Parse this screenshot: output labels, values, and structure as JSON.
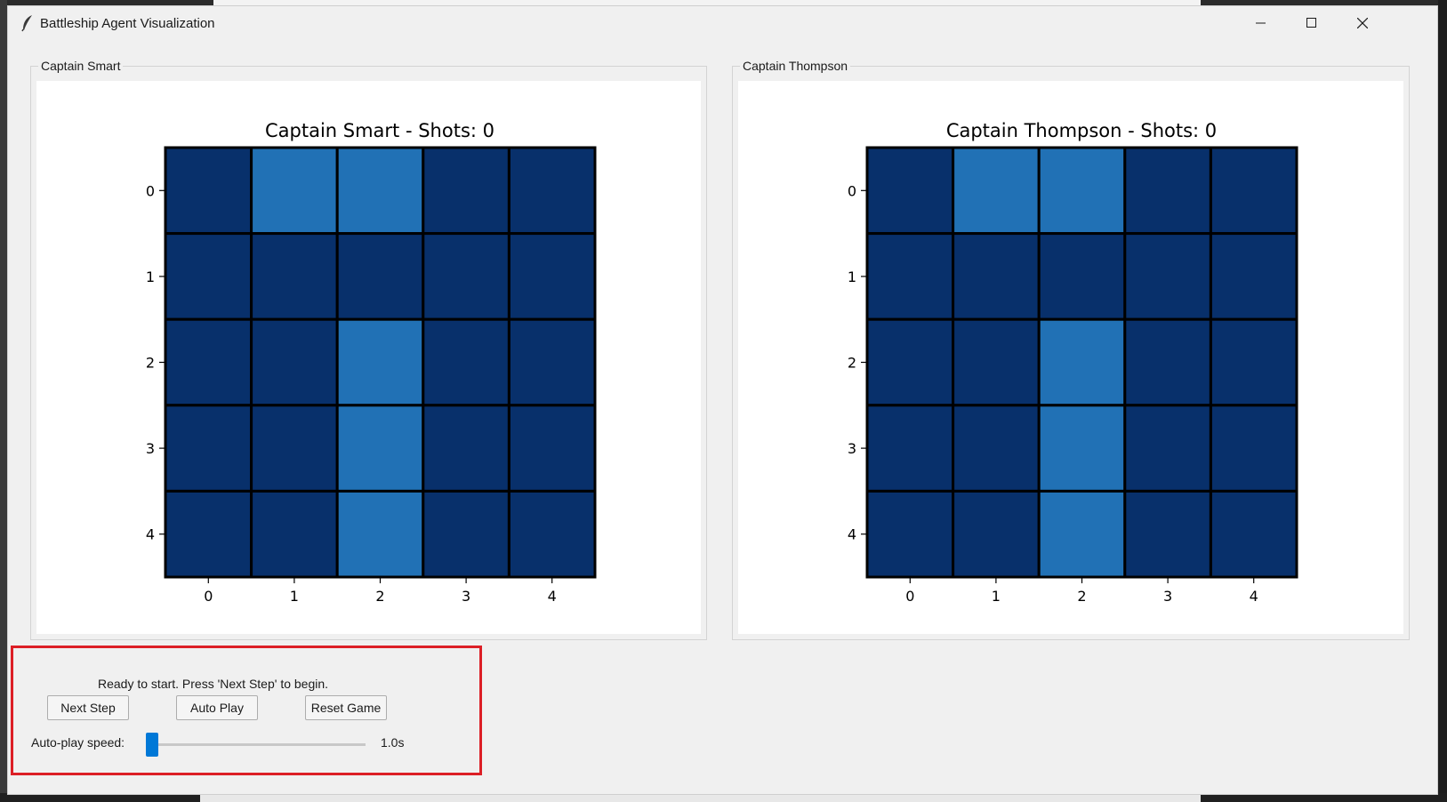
{
  "window": {
    "title": "Battleship Agent Visualization",
    "controls": [
      "minimize-icon",
      "maximize-icon",
      "close-icon"
    ]
  },
  "colors": {
    "water": "#08306b",
    "ship": "#2171b5",
    "grid_line": "#000000",
    "highlight_box": "#dc1f26",
    "slider_accent": "#0078d7"
  },
  "boards": [
    {
      "group_label": "Captain Smart",
      "plot_title": "Captain Smart - Shots: 0",
      "x_ticks": [
        "0",
        "1",
        "2",
        "3",
        "4"
      ],
      "y_ticks": [
        "0",
        "1",
        "2",
        "3",
        "4"
      ],
      "grid": [
        [
          0,
          1,
          1,
          0,
          0
        ],
        [
          0,
          0,
          0,
          0,
          0
        ],
        [
          0,
          0,
          1,
          0,
          0
        ],
        [
          0,
          0,
          1,
          0,
          0
        ],
        [
          0,
          0,
          1,
          0,
          0
        ]
      ]
    },
    {
      "group_label": "Captain Thompson",
      "plot_title": "Captain Thompson - Shots: 0",
      "x_ticks": [
        "0",
        "1",
        "2",
        "3",
        "4"
      ],
      "y_ticks": [
        "0",
        "1",
        "2",
        "3",
        "4"
      ],
      "grid": [
        [
          0,
          1,
          1,
          0,
          0
        ],
        [
          0,
          0,
          0,
          0,
          0
        ],
        [
          0,
          0,
          1,
          0,
          0
        ],
        [
          0,
          0,
          1,
          0,
          0
        ],
        [
          0,
          0,
          1,
          0,
          0
        ]
      ]
    }
  ],
  "controls": {
    "status_text": "Ready to start. Press 'Next Step' to begin.",
    "next_step_label": "Next Step",
    "auto_play_label": "Auto Play",
    "reset_label": "Reset Game",
    "speed_label": "Auto-play speed:",
    "speed_value": "1.0s",
    "speed_fraction": 0.0
  }
}
